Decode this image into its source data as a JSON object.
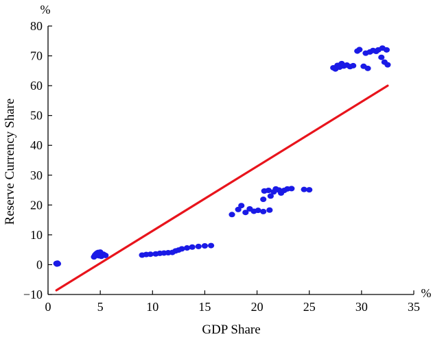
{
  "chart_data": {
    "type": "scatter",
    "title": "",
    "xlabel": "GDP Share",
    "ylabel": "Reserve Currency Share",
    "x_unit": "%",
    "y_unit": "%",
    "xlim": [
      0,
      35
    ],
    "ylim": [
      -10,
      80
    ],
    "x_ticks": [
      0,
      5,
      10,
      15,
      20,
      25,
      30,
      35
    ],
    "y_ticks": [
      -10,
      0,
      10,
      20,
      30,
      40,
      50,
      60,
      70,
      80
    ],
    "grid": false,
    "legend": "none",
    "points_color": "#1a1ae6",
    "line_color": "#e8141c",
    "points": [
      [
        0.8,
        0.4
      ],
      [
        0.85,
        0.2
      ],
      [
        0.9,
        0.5
      ],
      [
        0.95,
        0.3
      ],
      [
        4.4,
        2.6
      ],
      [
        4.5,
        3.2
      ],
      [
        4.6,
        3.6
      ],
      [
        4.7,
        3.9
      ],
      [
        4.8,
        4.1
      ],
      [
        4.85,
        3.0
      ],
      [
        4.9,
        3.6
      ],
      [
        5.0,
        4.2
      ],
      [
        5.1,
        2.8
      ],
      [
        5.2,
        3.3
      ],
      [
        5.3,
        3.5
      ],
      [
        5.5,
        3.1
      ],
      [
        9.0,
        3.2
      ],
      [
        9.4,
        3.4
      ],
      [
        9.8,
        3.5
      ],
      [
        10.3,
        3.6
      ],
      [
        10.7,
        3.8
      ],
      [
        11.1,
        3.9
      ],
      [
        11.5,
        4.0
      ],
      [
        11.9,
        4.1
      ],
      [
        12.2,
        4.6
      ],
      [
        12.5,
        4.9
      ],
      [
        12.8,
        5.3
      ],
      [
        13.3,
        5.6
      ],
      [
        13.8,
        5.9
      ],
      [
        14.4,
        6.1
      ],
      [
        15.0,
        6.3
      ],
      [
        15.6,
        6.4
      ],
      [
        17.6,
        16.8
      ],
      [
        18.2,
        18.5
      ],
      [
        18.5,
        19.8
      ],
      [
        18.9,
        17.5
      ],
      [
        19.3,
        18.7
      ],
      [
        19.7,
        17.9
      ],
      [
        20.1,
        18.2
      ],
      [
        20.6,
        17.8
      ],
      [
        20.6,
        21.9
      ],
      [
        20.7,
        24.7
      ],
      [
        21.1,
        24.9
      ],
      [
        21.2,
        18.3
      ],
      [
        21.3,
        23.0
      ],
      [
        21.6,
        24.4
      ],
      [
        21.8,
        25.4
      ],
      [
        22.1,
        25.0
      ],
      [
        22.3,
        24.0
      ],
      [
        22.6,
        24.9
      ],
      [
        22.9,
        25.4
      ],
      [
        23.3,
        25.5
      ],
      [
        24.5,
        25.2
      ],
      [
        25.0,
        25.1
      ],
      [
        27.3,
        66.0
      ],
      [
        27.5,
        65.6
      ],
      [
        27.7,
        66.8
      ],
      [
        27.9,
        66.2
      ],
      [
        28.1,
        67.4
      ],
      [
        28.3,
        66.6
      ],
      [
        28.6,
        66.9
      ],
      [
        28.9,
        66.4
      ],
      [
        29.2,
        66.7
      ],
      [
        29.6,
        71.6
      ],
      [
        29.8,
        72.1
      ],
      [
        30.2,
        66.5
      ],
      [
        30.4,
        70.9
      ],
      [
        30.6,
        65.8
      ],
      [
        30.8,
        71.3
      ],
      [
        31.1,
        71.8
      ],
      [
        31.4,
        71.5
      ],
      [
        31.6,
        72.0
      ],
      [
        31.9,
        69.5
      ],
      [
        32.0,
        72.6
      ],
      [
        32.2,
        67.9
      ],
      [
        32.4,
        72.0
      ],
      [
        32.5,
        67.0
      ]
    ],
    "line": {
      "x": [
        0.8,
        32.5
      ],
      "y": [
        -8.6,
        60.0
      ]
    }
  }
}
